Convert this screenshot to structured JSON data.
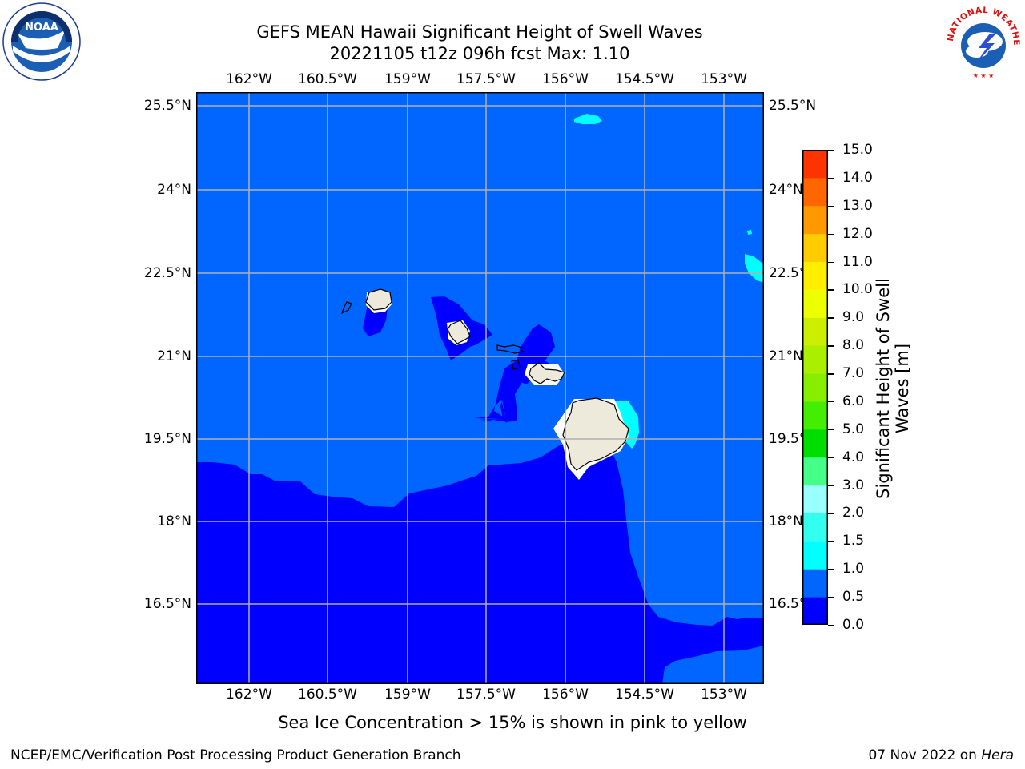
{
  "title": {
    "line1": "GEFS MEAN Hawaii Significant Height of Swell Waves",
    "line2": "20221105 t12z 096h fcst   Max: 1.10"
  },
  "axes": {
    "lon_labels": [
      "162°W",
      "160.5°W",
      "159°W",
      "157.5°W",
      "156°W",
      "154.5°W",
      "153°W"
    ],
    "lat_labels": [
      "25.5°N",
      "24°N",
      "22.5°N",
      "21°N",
      "19.5°N",
      "18°N",
      "16.5°N"
    ],
    "lon_values": [
      -162,
      -160.5,
      -159,
      -157.5,
      -156,
      -154.5,
      -153
    ],
    "lat_values": [
      25.5,
      24,
      22.5,
      21,
      19.5,
      18,
      16.5
    ],
    "lon_range": [
      -163,
      -152.2
    ],
    "lat_range": [
      15.0,
      25.75
    ],
    "grid": true
  },
  "colorbar": {
    "title": "Significant Height of Swell Waves [m]",
    "labels": [
      "0.0",
      "0.5",
      "1.0",
      "1.5",
      "2.0",
      "3.0",
      "4.0",
      "5.0",
      "6.0",
      "7.0",
      "8.0",
      "9.0",
      "10.0",
      "11.0",
      "12.0",
      "13.0",
      "14.0",
      "15.0"
    ],
    "levels": [
      0,
      0.5,
      1,
      1.5,
      2,
      3,
      4,
      5,
      6,
      7,
      8,
      9,
      10,
      11,
      12,
      13,
      14,
      15
    ],
    "colors": [
      "#0000ff",
      "#0066ff",
      "#00ffff",
      "#33ffee",
      "#99ffff",
      "#44ff88",
      "#00dd00",
      "#44ee00",
      "#88ee00",
      "#aaee00",
      "#ccee00",
      "#eeff00",
      "#ffee00",
      "#ffcc00",
      "#ff9900",
      "#ff6600",
      "#ff3300"
    ]
  },
  "map_colors": {
    "background_swell": "#0066ff",
    "low_swell": "#0000ff",
    "moderate_swell": "#00ffff",
    "land": "#eeeadb",
    "grid": "#b0b0b0"
  },
  "footer": {
    "note": "Sea Ice Concentration > 15% is shown in pink to yellow",
    "left": "NCEP/EMC/Verification Post Processing Product Generation Branch",
    "right_date": "07 Nov 2022 on",
    "right_host": "Hera"
  },
  "logos": {
    "left": "noaa-logo",
    "right": "nws-logo",
    "left_text": "NOAA",
    "right_text": "NATIONAL WEATHER SERVICE"
  }
}
